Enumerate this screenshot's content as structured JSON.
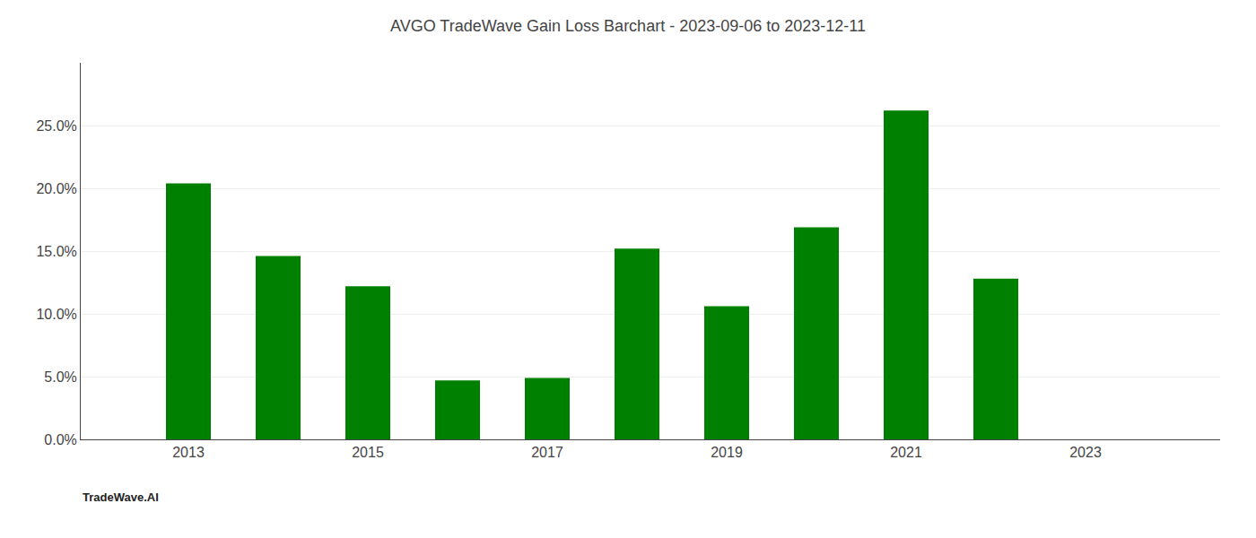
{
  "chart_data": {
    "type": "bar",
    "title": "AVGO TradeWave Gain Loss Barchart - 2023-09-06 to 2023-12-11",
    "annotations": [
      "TradeWave.AI"
    ],
    "x": [
      2013,
      2014,
      2015,
      2016,
      2017,
      2018,
      2019,
      2020,
      2021,
      2022,
      2023
    ],
    "values": [
      0.204,
      0.146,
      0.122,
      0.047,
      0.049,
      0.152,
      0.106,
      0.169,
      0.262,
      0.128,
      0.0
    ],
    "color": "#008000",
    "xlim": [
      2011.8,
      2024.5
    ],
    "xticks": [
      2013,
      2015,
      2017,
      2019,
      2021,
      2023
    ],
    "ylim": [
      0,
      0.3
    ],
    "yticks": [
      {
        "value": 0.0,
        "label": "0.0%"
      },
      {
        "value": 0.05,
        "label": "5.0%"
      },
      {
        "value": 0.1,
        "label": "10.0%"
      },
      {
        "value": 0.15,
        "label": "15.0%"
      },
      {
        "value": 0.2,
        "label": "20.0%"
      },
      {
        "value": 0.25,
        "label": "25.0%"
      }
    ],
    "grid": true
  }
}
